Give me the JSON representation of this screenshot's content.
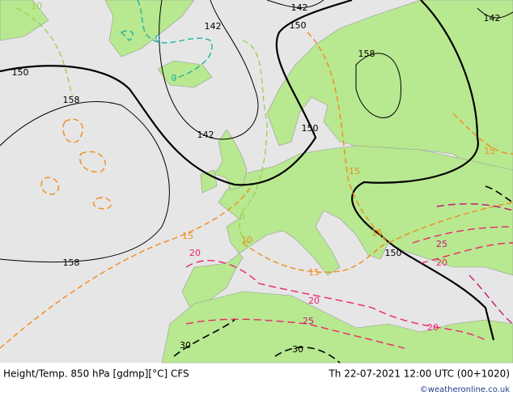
{
  "map": {
    "contour_labels": [
      "142",
      "142",
      "142",
      "150",
      "150",
      "158",
      "158",
      "142",
      "150",
      "158",
      "150",
      "15",
      "15",
      "15",
      "15",
      "15",
      "20",
      "20",
      "20",
      "20",
      "25",
      "25",
      "30",
      "30",
      "10",
      "5",
      "0",
      "0",
      "10"
    ]
  },
  "footer": {
    "left": "Height/Temp. 850 hPa [gdmp][°C] CFS",
    "right": "Th 22-07-2021 12:00 UTC (00+1020)",
    "credit": "©weatheronline.co.uk"
  }
}
